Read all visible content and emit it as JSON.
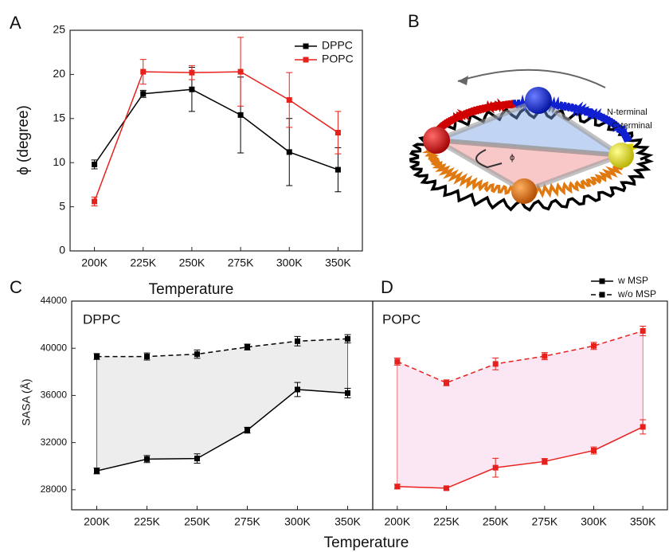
{
  "chart_data": [
    {
      "type": "line",
      "panel_label": "A",
      "x_label": "Temperature",
      "y_label": "ϕ (degree)",
      "categories": [
        "200K",
        "225K",
        "250K",
        "275K",
        "300K",
        "350K"
      ],
      "ylim": [
        0,
        25
      ],
      "yticks": [
        0,
        5,
        10,
        15,
        20,
        25
      ],
      "legend": "upper right",
      "series": [
        {
          "name": "DPPC",
          "color": "#000000",
          "values": [
            9.8,
            17.8,
            18.3,
            15.4,
            11.2,
            9.2
          ],
          "errors": [
            0.5,
            0.4,
            2.5,
            4.3,
            3.8,
            2.5
          ]
        },
        {
          "name": "POPC",
          "color": "#e8201c",
          "values": [
            5.6,
            20.3,
            20.2,
            20.3,
            17.1,
            13.4
          ],
          "errors": [
            0.5,
            1.4,
            0.8,
            3.9,
            3.1,
            2.4
          ]
        }
      ]
    },
    {
      "type": "line",
      "panel_label": "C",
      "subtitle": "DPPC",
      "x_label": "Temperature",
      "y_label": "SASA (Å)",
      "categories": [
        "200K",
        "225K",
        "250K",
        "275K",
        "300K",
        "350K"
      ],
      "ylim": [
        26300,
        44000
      ],
      "yticks": [
        28000,
        32000,
        36000,
        40000,
        44000
      ],
      "legend": "upper right",
      "fill_between": "#ededed",
      "series": [
        {
          "name": "w MSP",
          "color": "#000000",
          "dashed": false,
          "values": [
            29600,
            30600,
            30650,
            33050,
            36500,
            36200
          ],
          "errors": [
            250,
            300,
            400,
            250,
            600,
            400
          ]
        },
        {
          "name": "w/o MSP",
          "color": "#000000",
          "dashed": true,
          "values": [
            39300,
            39300,
            39500,
            40100,
            40600,
            40800
          ],
          "errors": [
            250,
            300,
            350,
            250,
            400,
            350
          ]
        }
      ]
    },
    {
      "type": "line",
      "panel_label": "D",
      "subtitle": "POPC",
      "categories": [
        "200K",
        "225K",
        "250K",
        "275K",
        "300K",
        "350K"
      ],
      "ylim": [
        26300,
        44000
      ],
      "fill_between": "#fbe6f3",
      "series": [
        {
          "color": "#e8201c",
          "dashed": false,
          "values": [
            28270,
            28130,
            29870,
            30400,
            31330,
            33330
          ],
          "errors": [
            200,
            150,
            800,
            250,
            300,
            600
          ]
        },
        {
          "color": "#e8201c",
          "dashed": true,
          "values": [
            38870,
            37070,
            38670,
            39330,
            40200,
            41470
          ],
          "errors": [
            300,
            250,
            500,
            300,
            300,
            400
          ]
        }
      ]
    }
  ],
  "diagram": {
    "panel_label": "B",
    "n_label": "N-terminal",
    "c_label": "C-terminal",
    "angle_label": "ϕ"
  }
}
